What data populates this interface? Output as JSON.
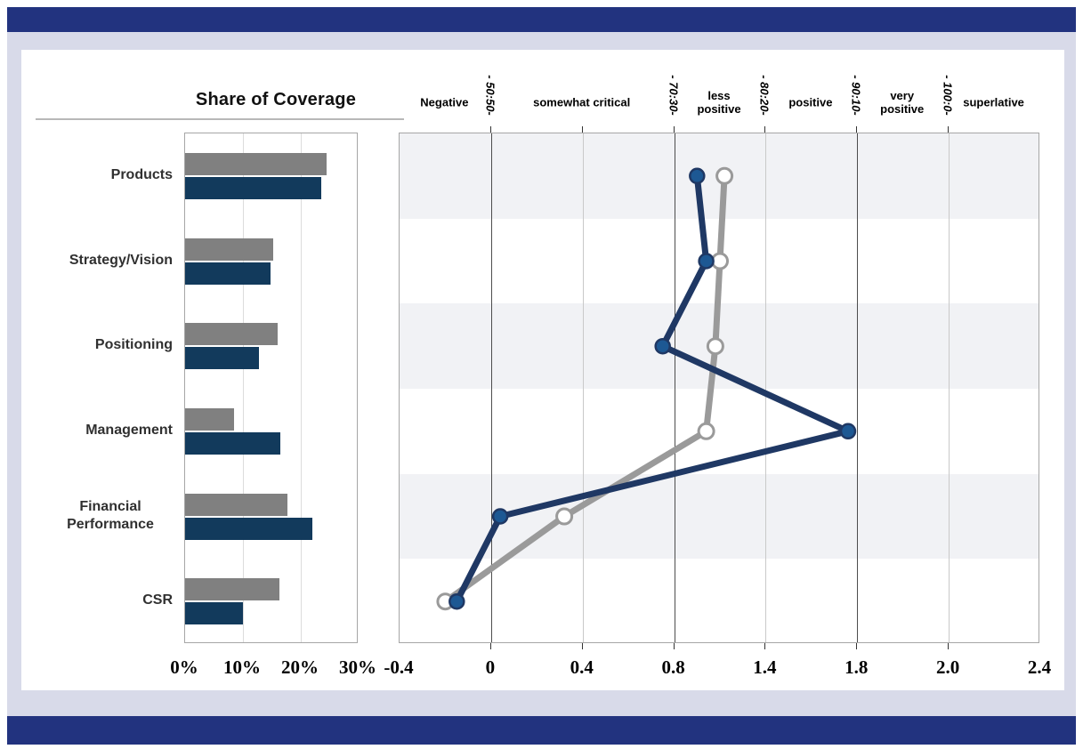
{
  "window": {
    "accent_bar_color": "#22337F",
    "panel_color": "#D8DAE9",
    "card_color": "#FFFFFF"
  },
  "chart_data": [
    {
      "type": "bar",
      "orientation": "horizontal",
      "title": "Share of Coverage",
      "categories": [
        "Products",
        "Strategy/Vision",
        "Positioning",
        "Management",
        "Financial Performance",
        "CSR"
      ],
      "series": [
        {
          "name": "gray",
          "color": "#808080",
          "values": [
            24.5,
            15.2,
            16.0,
            8.5,
            17.7,
            16.3
          ]
        },
        {
          "name": "navy",
          "color": "#123A5C",
          "values": [
            23.5,
            14.8,
            12.8,
            16.5,
            22.0,
            10.0
          ]
        }
      ],
      "x_ticks": [
        "0%",
        "10%",
        "20%",
        "30%"
      ],
      "xlim": [
        0,
        30
      ],
      "grid": "vertical-light",
      "legend": "none"
    },
    {
      "type": "line",
      "orientation": "vertical-category-axis",
      "categories": [
        "Products",
        "Strategy/Vision",
        "Positioning",
        "Management",
        "Financial Performance",
        "CSR"
      ],
      "series": [
        {
          "name": "navy",
          "color": "#1F3864",
          "marker_fill": "#1D5893",
          "values": [
            0.9,
            0.94,
            0.75,
            1.56,
            0.04,
            -0.15
          ]
        },
        {
          "name": "gray",
          "color": "#9A9A9A",
          "marker_fill": "#FFFFFF",
          "values": [
            1.02,
            1.0,
            0.98,
            0.94,
            0.32,
            -0.2
          ]
        }
      ],
      "xlim": [
        -0.4,
        2.4
      ],
      "x_tick_labels": [
        "-0.4",
        "0",
        "0.4",
        "0.8",
        "1.4",
        "1.8",
        "2.0",
        "2.4"
      ],
      "header_zone_labels": [
        "Negative",
        "somewhat critical",
        "less positive",
        "positive",
        "very positive",
        "superlative"
      ],
      "header_divider_labels": [
        "- 50:50-",
        "- 70:30-",
        "- 80:20-",
        "- 90:10-",
        "- 100:0-"
      ],
      "row_band_color": "#F1F2F5",
      "legend": "none"
    }
  ]
}
